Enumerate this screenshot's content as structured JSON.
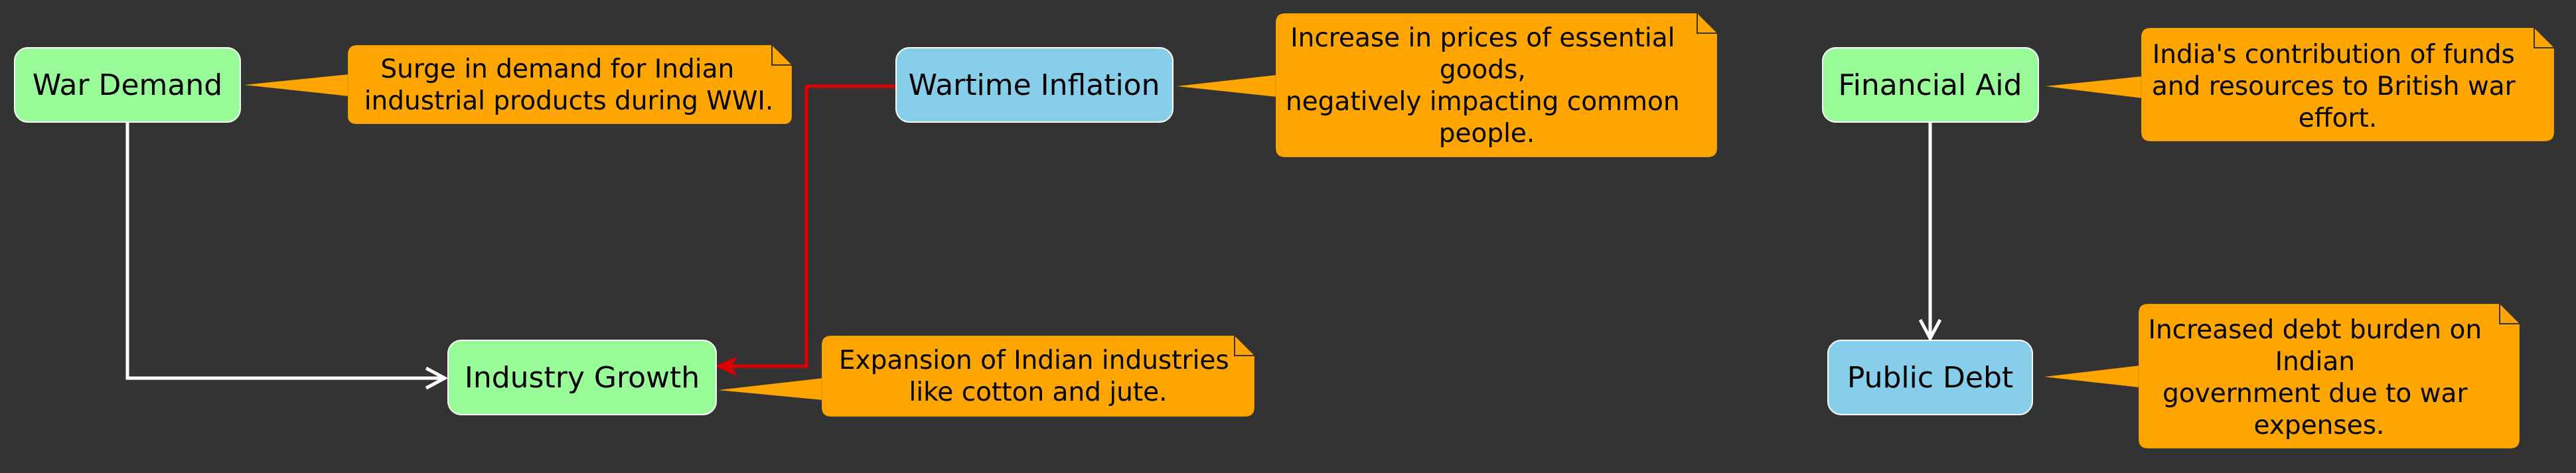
{
  "colors": {
    "background": "#333333",
    "node_green": "#98FB98",
    "node_blue": "#87CEEB",
    "note": "#FFA500",
    "arrow_default": "#FFFFFF",
    "arrow_inflation": "#DD0000"
  },
  "nodes": {
    "war_demand": "War Demand",
    "industry_growth": "Industry Growth",
    "wartime_inflation": "Wartime Inflation",
    "financial_aid": "Financial Aid",
    "public_debt": "Public Debt"
  },
  "notes": {
    "war_demand": [
      "Surge in demand for Indian",
      "industrial products during WWI."
    ],
    "industry_growth": [
      "Expansion of Indian industries",
      "like cotton and jute."
    ],
    "wartime_inflation": [
      "Increase in prices of essential",
      "goods,",
      "negatively impacting common",
      "people."
    ],
    "financial_aid": [
      "India's contribution of funds",
      "and resources to British war",
      "effort."
    ],
    "public_debt": [
      "Increased debt burden on",
      "Indian",
      "government due to war",
      "expenses."
    ]
  },
  "edges": [
    {
      "from": "War Demand",
      "to": "Industry Growth"
    },
    {
      "from": "Wartime Inflation",
      "to": "Industry Growth"
    },
    {
      "from": "Financial Aid",
      "to": "Public Debt"
    }
  ]
}
